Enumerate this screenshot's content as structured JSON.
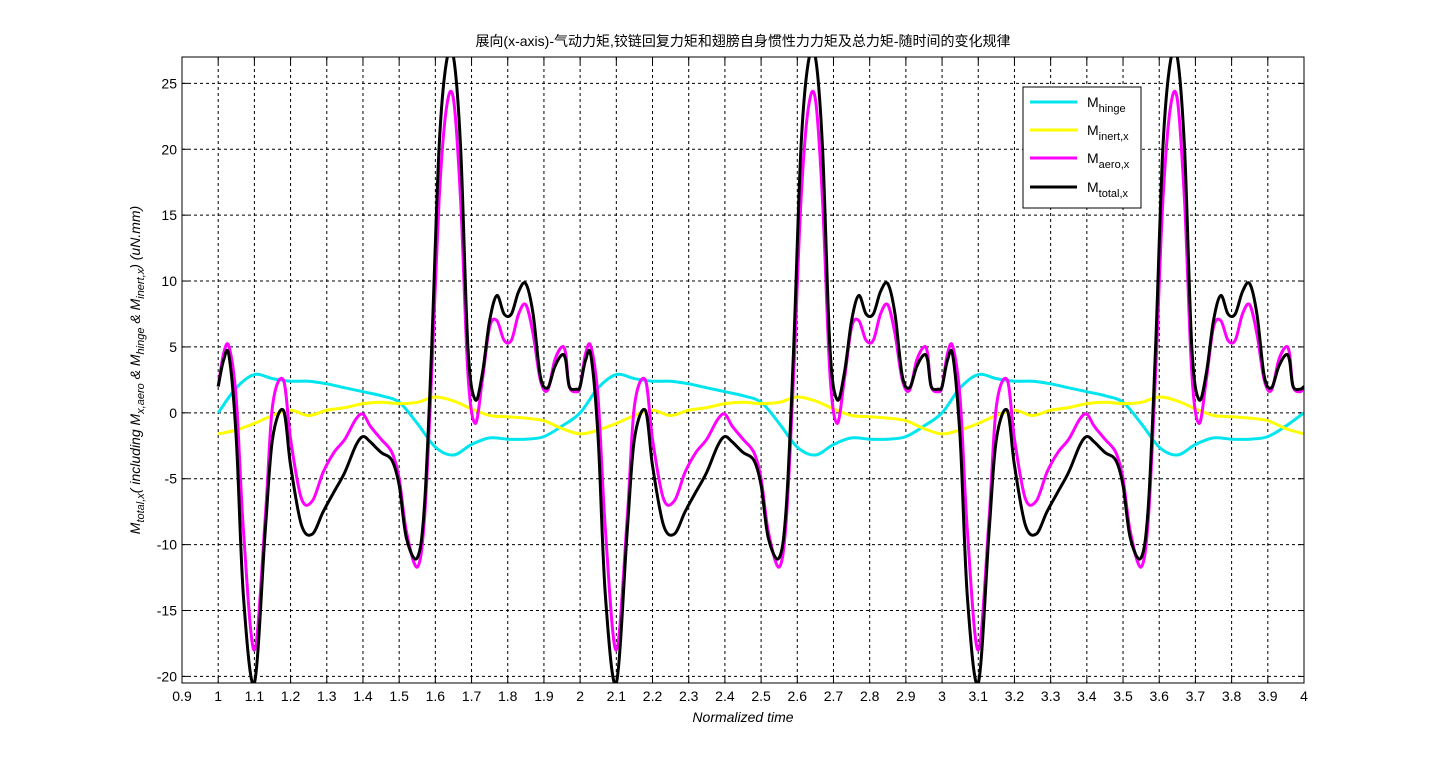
{
  "chart_data": {
    "type": "line",
    "title": "展向(x-axis)-气动力矩,铰链回复力矩和翅膀自身惯性力力矩及总力矩-随时间的变化规律",
    "xlabel": "Normalized time",
    "ylabel": {
      "main": "M",
      "main_sub": "total,x",
      "p1": "( including M",
      "p1_sub": "x,aero",
      "p2": " & M",
      "p2_sub": "hinge",
      "p3": " & M",
      "p3_sub": "inert,x",
      "p4": ")  (uN.mm)"
    },
    "xlim": [
      0.9,
      4.0
    ],
    "ylim": [
      -20.5,
      27
    ],
    "xticks": [
      "0.9",
      "1",
      "1.1",
      "1.2",
      "1.3",
      "1.4",
      "1.5",
      "1.6",
      "1.7",
      "1.8",
      "1.9",
      "2",
      "2.1",
      "2.2",
      "2.3",
      "2.4",
      "2.5",
      "2.6",
      "2.7",
      "2.8",
      "2.9",
      "3",
      "3.1",
      "3.2",
      "3.3",
      "3.4",
      "3.5",
      "3.6",
      "3.7",
      "3.8",
      "3.9",
      "4"
    ],
    "xtick_values": [
      0.9,
      1.0,
      1.1,
      1.2,
      1.3,
      1.4,
      1.5,
      1.6,
      1.7,
      1.8,
      1.9,
      2.0,
      2.1,
      2.2,
      2.3,
      2.4,
      2.5,
      2.6,
      2.7,
      2.8,
      2.9,
      3.0,
      3.1,
      3.2,
      3.3,
      3.4,
      3.5,
      3.6,
      3.7,
      3.8,
      3.9,
      4.0
    ],
    "yticks": [
      "-20",
      "-15",
      "-10",
      "-5",
      "0",
      "5",
      "10",
      "15",
      "20",
      "25"
    ],
    "ytick_values": [
      -20,
      -15,
      -10,
      -5,
      0,
      5,
      10,
      15,
      20,
      25
    ],
    "grid": true,
    "legend_position": "top-right",
    "period": 1.0,
    "series": [
      {
        "name": "M",
        "sub": "hinge",
        "color": "#00e5ee",
        "phase_x": [
          0,
          0.05,
          0.1,
          0.15,
          0.2,
          0.25,
          0.3,
          0.35,
          0.4,
          0.45,
          0.5,
          0.55,
          0.6,
          0.65,
          0.7,
          0.75,
          0.8,
          0.85,
          0.9,
          0.95,
          1.0
        ],
        "phase_y": [
          0.0,
          1.9,
          2.9,
          2.6,
          2.4,
          2.4,
          2.2,
          1.9,
          1.6,
          1.3,
          0.8,
          -0.8,
          -2.6,
          -3.2,
          -2.4,
          -1.9,
          -2.0,
          -2.0,
          -1.8,
          -1.0,
          0.0
        ]
      },
      {
        "name": "M",
        "sub": "inert,x",
        "color": "#ffff00",
        "phase_x": [
          0,
          0.05,
          0.1,
          0.15,
          0.2,
          0.25,
          0.3,
          0.35,
          0.4,
          0.45,
          0.5,
          0.55,
          0.6,
          0.65,
          0.7,
          0.75,
          0.8,
          0.85,
          0.9,
          0.95,
          1.0
        ],
        "phase_y": [
          -1.6,
          -1.3,
          -0.8,
          -0.2,
          0.2,
          -0.2,
          0.2,
          0.4,
          0.7,
          0.8,
          0.7,
          0.8,
          1.2,
          0.9,
          0.3,
          -0.2,
          -0.3,
          -0.4,
          -0.6,
          -1.2,
          -1.6
        ]
      },
      {
        "name": "M",
        "sub": "aero,x",
        "color": "#ff00ff",
        "phase_x": [
          0,
          0.015,
          0.03,
          0.05,
          0.07,
          0.1,
          0.13,
          0.15,
          0.18,
          0.2,
          0.23,
          0.26,
          0.29,
          0.32,
          0.35,
          0.38,
          0.4,
          0.42,
          0.45,
          0.48,
          0.5,
          0.52,
          0.55,
          0.57,
          0.59,
          0.61,
          0.63,
          0.65,
          0.67,
          0.69,
          0.71,
          0.73,
          0.75,
          0.77,
          0.79,
          0.81,
          0.83,
          0.85,
          0.87,
          0.89,
          0.91,
          0.93,
          0.95,
          0.96,
          0.97,
          0.99,
          1.0
        ],
        "phase_y": [
          2.0,
          4.5,
          5.0,
          1.0,
          -9.0,
          -18.0,
          -8.0,
          0.5,
          2.5,
          -2.0,
          -6.5,
          -6.7,
          -4.5,
          -3.0,
          -2.0,
          -0.5,
          -0.1,
          -1.0,
          -2.0,
          -3.0,
          -5.0,
          -9.0,
          -11.7,
          -8.0,
          3.0,
          16.0,
          23.0,
          23.8,
          16.0,
          3.0,
          -0.8,
          2.5,
          6.5,
          7.0,
          5.5,
          5.5,
          7.5,
          8.2,
          6.0,
          2.5,
          1.7,
          4.0,
          5.0,
          4.5,
          2.0,
          1.6,
          2.0
        ]
      },
      {
        "name": "M",
        "sub": "total,x",
        "color": "#000000",
        "phase_x": [
          0,
          0.015,
          0.03,
          0.05,
          0.07,
          0.1,
          0.13,
          0.15,
          0.18,
          0.2,
          0.23,
          0.26,
          0.29,
          0.32,
          0.35,
          0.38,
          0.4,
          0.42,
          0.45,
          0.48,
          0.5,
          0.52,
          0.55,
          0.57,
          0.59,
          0.61,
          0.63,
          0.65,
          0.67,
          0.69,
          0.71,
          0.73,
          0.75,
          0.77,
          0.79,
          0.81,
          0.83,
          0.85,
          0.87,
          0.89,
          0.91,
          0.93,
          0.95,
          0.96,
          0.97,
          0.99,
          1.0
        ],
        "phase_y": [
          2.0,
          4.0,
          4.3,
          -2.0,
          -14.0,
          -20.5,
          -9.0,
          -2.0,
          0.2,
          -4.0,
          -8.5,
          -9.2,
          -7.5,
          -6.0,
          -4.5,
          -2.5,
          -1.8,
          -2.2,
          -3.0,
          -3.6,
          -5.5,
          -9.5,
          -11.0,
          -7.0,
          5.0,
          20.0,
          26.5,
          27.0,
          20.0,
          5.0,
          1.0,
          3.0,
          7.0,
          8.9,
          7.5,
          7.5,
          9.2,
          9.8,
          7.5,
          2.8,
          1.9,
          3.5,
          4.4,
          4.0,
          2.0,
          1.8,
          2.0
        ]
      }
    ]
  }
}
